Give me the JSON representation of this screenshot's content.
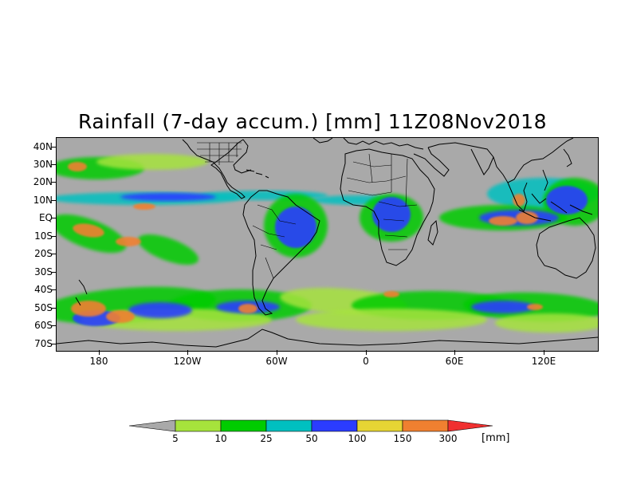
{
  "title": "Rainfall (7-day accum.) [mm] 11Z08Nov2018",
  "colors": {
    "land_ocean_below_threshold": "#a9a9a9",
    "bins": [
      "#a6e33c",
      "#00cc00",
      "#00c0c0",
      "#2b3cff",
      "#e6d534",
      "#f08030",
      "#f03030"
    ],
    "coastline": "#000000"
  },
  "latitude_labels": [
    "40N",
    "30N",
    "20N",
    "10N",
    "EQ",
    "10S",
    "20S",
    "30S",
    "40S",
    "50S",
    "60S",
    "70S"
  ],
  "longitude_labels": [
    "180",
    "120W",
    "60W",
    "0",
    "60E",
    "120E"
  ],
  "colorbar": {
    "labels": [
      "5",
      "10",
      "25",
      "50",
      "100",
      "150",
      "300"
    ],
    "units": "[mm]"
  }
}
